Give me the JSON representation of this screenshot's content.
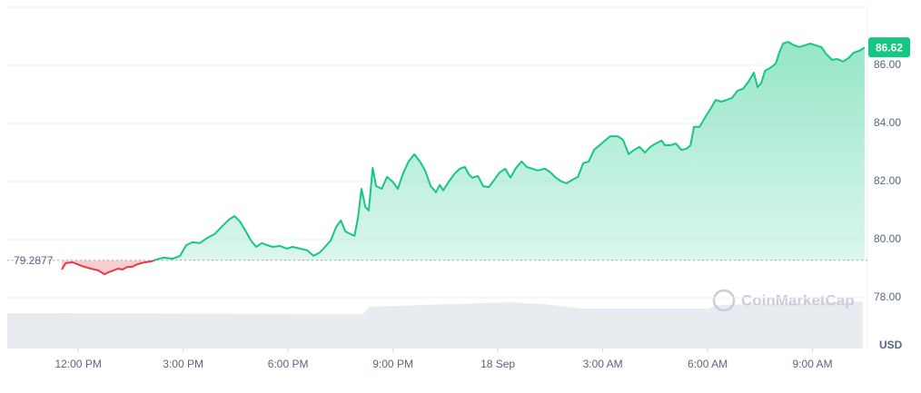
{
  "chart_data": {
    "type": "line",
    "currency": "USD",
    "watermark": "CoinMarketCap",
    "baseline": 79.2877,
    "xlim": [
      -2.03,
      22.57
    ],
    "ylim": [
      76.25,
      88
    ],
    "xticks": [
      {
        "value": 0,
        "label": "12:00 PM"
      },
      {
        "value": 3,
        "label": "3:00 PM"
      },
      {
        "value": 6,
        "label": "6:00 PM"
      },
      {
        "value": 9,
        "label": "9:00 PM"
      },
      {
        "value": 12,
        "label": "18 Sep"
      },
      {
        "value": 15,
        "label": "3:00 AM"
      },
      {
        "value": 18,
        "label": "6:00 AM"
      },
      {
        "value": 21,
        "label": "9:00 AM"
      }
    ],
    "yticks": [
      {
        "value": 78,
        "label": "78.00"
      },
      {
        "value": 80,
        "label": "80.00"
      },
      {
        "value": 82,
        "label": "82.00"
      },
      {
        "value": 84,
        "label": "84.00"
      },
      {
        "value": 86,
        "label": "86.00"
      }
    ],
    "grid": true,
    "up_color": "#16c784",
    "down_color": "#ea3943",
    "x": [
      -0.47,
      -0.36,
      -0.16,
      0.1,
      0.36,
      0.57,
      0.75,
      0.88,
      1.01,
      1.14,
      1.27,
      1.4,
      1.53,
      1.66,
      1.79,
      1.92,
      2.08,
      2.23,
      2.44,
      2.7,
      2.91,
      3.09,
      3.27,
      3.48,
      3.69,
      3.9,
      4.1,
      4.31,
      4.47,
      4.62,
      4.78,
      4.94,
      5.09,
      5.25,
      5.4,
      5.56,
      5.77,
      5.97,
      6.13,
      6.34,
      6.55,
      6.73,
      6.91,
      7.06,
      7.22,
      7.38,
      7.51,
      7.64,
      7.79,
      7.9,
      8.0,
      8.1,
      8.21,
      8.31,
      8.42,
      8.52,
      8.68,
      8.83,
      8.99,
      9.14,
      9.3,
      9.45,
      9.61,
      9.77,
      9.92,
      10.08,
      10.23,
      10.34,
      10.44,
      10.6,
      10.75,
      10.91,
      11.06,
      11.17,
      11.27,
      11.43,
      11.58,
      11.74,
      11.9,
      12.05,
      12.21,
      12.36,
      12.52,
      12.68,
      12.83,
      12.99,
      13.14,
      13.35,
      13.51,
      13.66,
      13.82,
      13.97,
      14.13,
      14.29,
      14.44,
      14.6,
      14.75,
      14.91,
      15.06,
      15.22,
      15.43,
      15.58,
      15.74,
      15.9,
      16.05,
      16.21,
      16.36,
      16.52,
      16.68,
      16.78,
      16.94,
      17.09,
      17.25,
      17.4,
      17.51,
      17.61,
      17.77,
      17.92,
      18.08,
      18.23,
      18.39,
      18.55,
      18.7,
      18.86,
      19.01,
      19.17,
      19.32,
      19.43,
      19.53,
      19.64,
      19.79,
      19.95,
      20.05,
      20.16,
      20.31,
      20.47,
      20.62,
      20.78,
      20.94,
      21.09,
      21.25,
      21.4,
      21.56,
      21.71,
      21.87,
      22.03,
      22.18,
      22.34,
      22.49
    ],
    "series": [
      {
        "values": [
          78.97,
          79.19,
          79.22,
          79.09,
          79.0,
          78.94,
          78.81,
          78.88,
          78.94,
          79.0,
          78.97,
          79.06,
          79.06,
          79.13,
          79.19,
          79.22,
          79.25,
          79.31,
          79.38,
          79.34,
          79.44,
          79.81,
          79.91,
          79.88,
          80.06,
          80.19,
          80.44,
          80.69,
          80.81,
          80.63,
          80.31,
          79.97,
          79.75,
          79.88,
          79.81,
          79.75,
          79.78,
          79.69,
          79.75,
          79.69,
          79.63,
          79.44,
          79.56,
          79.75,
          79.97,
          80.44,
          80.66,
          80.28,
          80.19,
          80.13,
          80.75,
          81.75,
          81.13,
          81.0,
          82.47,
          81.84,
          81.75,
          82.16,
          82.0,
          81.75,
          82.31,
          82.69,
          82.94,
          82.69,
          82.38,
          81.84,
          81.63,
          81.88,
          81.69,
          82.0,
          82.25,
          82.44,
          82.5,
          82.25,
          82.13,
          82.19,
          81.84,
          81.81,
          82.06,
          82.31,
          82.44,
          82.13,
          82.47,
          82.69,
          82.5,
          82.44,
          82.38,
          82.44,
          82.31,
          82.13,
          82.0,
          81.94,
          82.06,
          82.16,
          82.63,
          82.69,
          83.09,
          83.25,
          83.41,
          83.56,
          83.56,
          83.44,
          82.94,
          83.09,
          83.19,
          83.0,
          83.19,
          83.31,
          83.41,
          83.25,
          83.25,
          83.31,
          83.09,
          83.13,
          83.25,
          83.88,
          83.88,
          84.19,
          84.5,
          84.81,
          84.75,
          84.81,
          84.88,
          85.13,
          85.19,
          85.44,
          85.75,
          85.25,
          85.38,
          85.81,
          85.91,
          86.06,
          86.44,
          86.75,
          86.81,
          86.69,
          86.63,
          86.69,
          86.75,
          86.69,
          86.63,
          86.38,
          86.19,
          86.22,
          86.13,
          86.25,
          86.44,
          86.5,
          86.62
        ]
      }
    ]
  }
}
